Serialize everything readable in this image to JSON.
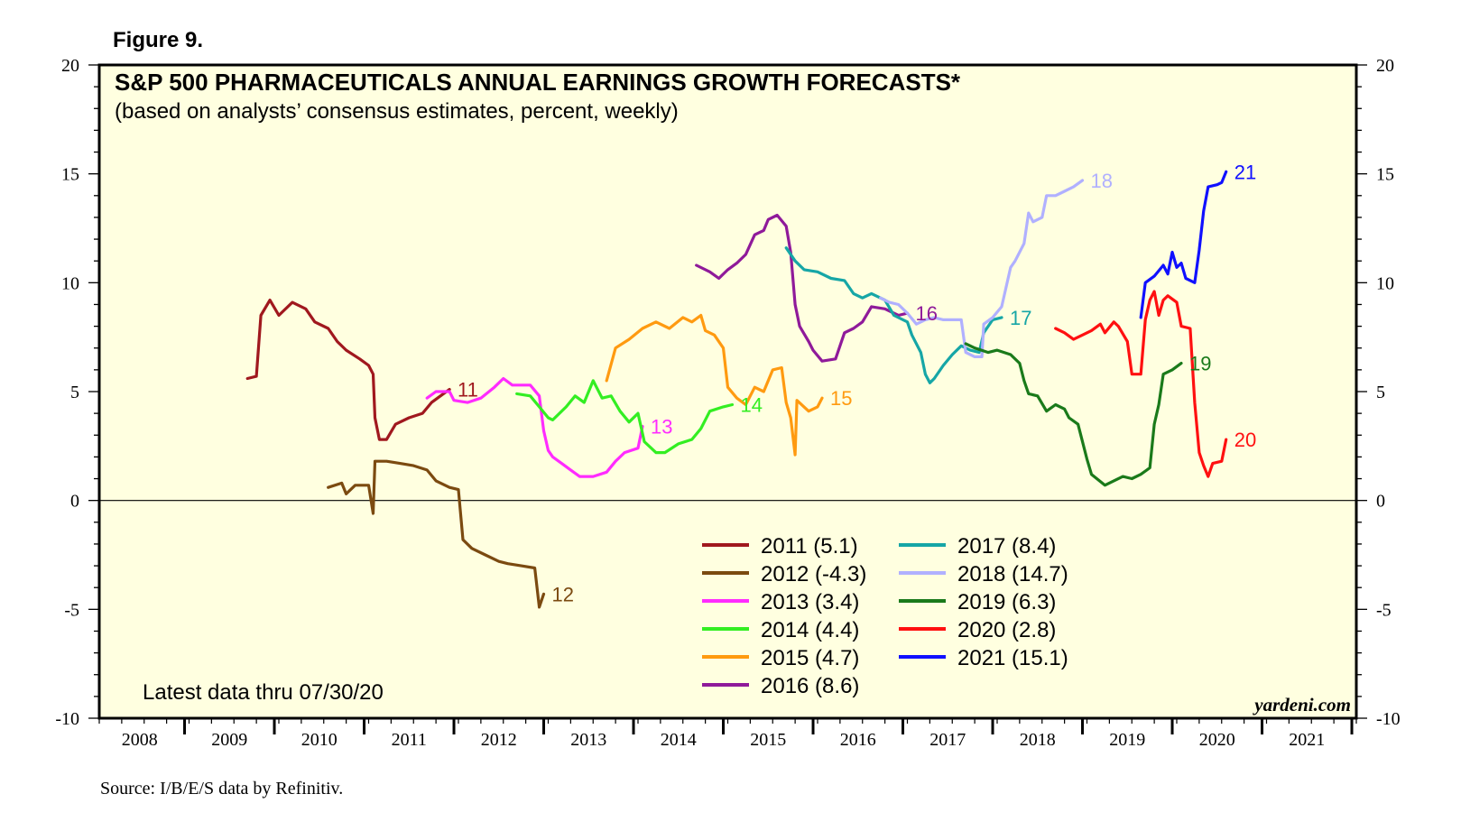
{
  "figure_label": "Figure 9.",
  "source": "Source: I/B/E/S data by Refinitiv.",
  "brand": "yardeni.com",
  "note": "Latest data thru 07/30/20",
  "colors": {
    "plot_bg": "#ffffe0",
    "2011": "#a0181e",
    "2012": "#7b4a10",
    "2013": "#ff2bff",
    "2014": "#33ee22",
    "2015": "#ff9a10",
    "2016": "#8f1a9a",
    "2017": "#16a6a6",
    "2018": "#b0b0ff",
    "2019": "#1a7a1a",
    "2020": "#ff1010",
    "2021": "#1010ff"
  },
  "chart_data": {
    "type": "line",
    "title": "S&P 500 PHARMACEUTICALS ANNUAL EARNINGS GROWTH FORECASTS*",
    "subtitle": "(based on analysts’ consensus estimates, percent, weekly)",
    "xlabel": "",
    "ylabel": "",
    "xlim": [
      2007.55,
      2021.55
    ],
    "ylim": [
      -10,
      20
    ],
    "x_ticks": [
      "2008",
      "2009",
      "2010",
      "2011",
      "2012",
      "2013",
      "2014",
      "2015",
      "2016",
      "2017",
      "2018",
      "2019",
      "2020",
      "2021"
    ],
    "y_ticks": [
      "20",
      "15",
      "10",
      "5",
      "0",
      "-5",
      "-10"
    ],
    "legend_position": "bottom-center",
    "series": [
      {
        "name": "2011",
        "legend": "2011 (5.1)",
        "end_label": "11",
        "points": [
          [
            2009.2,
            5.6
          ],
          [
            2009.3,
            5.7
          ],
          [
            2009.35,
            8.5
          ],
          [
            2009.45,
            9.2
          ],
          [
            2009.55,
            8.5
          ],
          [
            2009.7,
            9.1
          ],
          [
            2009.85,
            8.8
          ],
          [
            2009.95,
            8.2
          ],
          [
            2010.1,
            7.9
          ],
          [
            2010.2,
            7.3
          ],
          [
            2010.3,
            6.9
          ],
          [
            2010.45,
            6.5
          ],
          [
            2010.55,
            6.2
          ],
          [
            2010.6,
            5.8
          ],
          [
            2010.62,
            3.8
          ],
          [
            2010.67,
            2.8
          ],
          [
            2010.75,
            2.8
          ],
          [
            2010.85,
            3.5
          ],
          [
            2011.0,
            3.8
          ],
          [
            2011.15,
            4.0
          ],
          [
            2011.25,
            4.5
          ],
          [
            2011.35,
            4.8
          ],
          [
            2011.45,
            5.1
          ]
        ]
      },
      {
        "name": "2012",
        "legend": "2012 (-4.3)",
        "end_label": "12",
        "points": [
          [
            2010.1,
            0.6
          ],
          [
            2010.25,
            0.8
          ],
          [
            2010.3,
            0.3
          ],
          [
            2010.4,
            0.7
          ],
          [
            2010.55,
            0.7
          ],
          [
            2010.6,
            -0.6
          ],
          [
            2010.62,
            1.8
          ],
          [
            2010.75,
            1.8
          ],
          [
            2010.9,
            1.7
          ],
          [
            2011.05,
            1.6
          ],
          [
            2011.2,
            1.4
          ],
          [
            2011.3,
            0.9
          ],
          [
            2011.45,
            0.6
          ],
          [
            2011.55,
            0.5
          ],
          [
            2011.6,
            -1.8
          ],
          [
            2011.7,
            -2.2
          ],
          [
            2011.85,
            -2.5
          ],
          [
            2012.0,
            -2.8
          ],
          [
            2012.1,
            -2.9
          ],
          [
            2012.25,
            -3.0
          ],
          [
            2012.4,
            -3.1
          ],
          [
            2012.45,
            -4.9
          ],
          [
            2012.5,
            -4.3
          ]
        ]
      },
      {
        "name": "2013",
        "legend": "2013 (3.4)",
        "end_label": "13",
        "points": [
          [
            2011.2,
            4.7
          ],
          [
            2011.3,
            5.0
          ],
          [
            2011.45,
            5.0
          ],
          [
            2011.5,
            4.6
          ],
          [
            2011.65,
            4.5
          ],
          [
            2011.8,
            4.7
          ],
          [
            2011.95,
            5.2
          ],
          [
            2012.05,
            5.6
          ],
          [
            2012.15,
            5.3
          ],
          [
            2012.35,
            5.3
          ],
          [
            2012.45,
            4.8
          ],
          [
            2012.5,
            3.2
          ],
          [
            2012.55,
            2.3
          ],
          [
            2012.6,
            2.0
          ],
          [
            2012.7,
            1.7
          ],
          [
            2012.8,
            1.4
          ],
          [
            2012.9,
            1.1
          ],
          [
            2013.05,
            1.1
          ],
          [
            2013.2,
            1.3
          ],
          [
            2013.3,
            1.8
          ],
          [
            2013.4,
            2.2
          ],
          [
            2013.55,
            2.4
          ],
          [
            2013.6,
            3.4
          ]
        ]
      },
      {
        "name": "2014",
        "legend": "2014 (4.4)",
        "end_label": "14",
        "points": [
          [
            2012.2,
            4.9
          ],
          [
            2012.35,
            4.8
          ],
          [
            2012.45,
            4.3
          ],
          [
            2012.55,
            3.8
          ],
          [
            2012.6,
            3.7
          ],
          [
            2012.75,
            4.3
          ],
          [
            2012.85,
            4.8
          ],
          [
            2012.95,
            4.5
          ],
          [
            2013.05,
            5.5
          ],
          [
            2013.15,
            4.7
          ],
          [
            2013.25,
            4.8
          ],
          [
            2013.35,
            4.1
          ],
          [
            2013.45,
            3.6
          ],
          [
            2013.55,
            4.0
          ],
          [
            2013.62,
            2.7
          ],
          [
            2013.75,
            2.2
          ],
          [
            2013.85,
            2.2
          ],
          [
            2014.0,
            2.6
          ],
          [
            2014.15,
            2.8
          ],
          [
            2014.25,
            3.3
          ],
          [
            2014.35,
            4.1
          ],
          [
            2014.5,
            4.3
          ],
          [
            2014.6,
            4.4
          ]
        ]
      },
      {
        "name": "2015",
        "legend": "2015 (4.7)",
        "end_label": "15",
        "points": [
          [
            2013.2,
            5.5
          ],
          [
            2013.3,
            7.0
          ],
          [
            2013.45,
            7.4
          ],
          [
            2013.6,
            7.9
          ],
          [
            2013.75,
            8.2
          ],
          [
            2013.9,
            7.9
          ],
          [
            2014.05,
            8.4
          ],
          [
            2014.15,
            8.2
          ],
          [
            2014.25,
            8.5
          ],
          [
            2014.3,
            7.8
          ],
          [
            2014.4,
            7.6
          ],
          [
            2014.5,
            7.0
          ],
          [
            2014.55,
            5.2
          ],
          [
            2014.65,
            4.7
          ],
          [
            2014.75,
            4.4
          ],
          [
            2014.85,
            5.2
          ],
          [
            2014.95,
            5.0
          ],
          [
            2015.05,
            6.0
          ],
          [
            2015.15,
            6.1
          ],
          [
            2015.2,
            4.5
          ],
          [
            2015.25,
            3.8
          ],
          [
            2015.3,
            2.1
          ],
          [
            2015.32,
            4.6
          ],
          [
            2015.45,
            4.1
          ],
          [
            2015.55,
            4.3
          ],
          [
            2015.6,
            4.7
          ]
        ]
      },
      {
        "name": "2016",
        "legend": "2016 (8.6)",
        "end_label": "16",
        "points": [
          [
            2014.2,
            10.8
          ],
          [
            2014.35,
            10.5
          ],
          [
            2014.45,
            10.2
          ],
          [
            2014.55,
            10.6
          ],
          [
            2014.65,
            10.9
          ],
          [
            2014.75,
            11.3
          ],
          [
            2014.85,
            12.2
          ],
          [
            2014.95,
            12.4
          ],
          [
            2015.0,
            12.9
          ],
          [
            2015.1,
            13.1
          ],
          [
            2015.2,
            12.6
          ],
          [
            2015.25,
            11.4
          ],
          [
            2015.3,
            9.0
          ],
          [
            2015.35,
            8.0
          ],
          [
            2015.45,
            7.3
          ],
          [
            2015.5,
            6.9
          ],
          [
            2015.6,
            6.4
          ],
          [
            2015.75,
            6.5
          ],
          [
            2015.85,
            7.7
          ],
          [
            2015.95,
            7.9
          ],
          [
            2016.05,
            8.2
          ],
          [
            2016.15,
            8.9
          ],
          [
            2016.3,
            8.8
          ],
          [
            2016.45,
            8.5
          ],
          [
            2016.55,
            8.6
          ]
        ]
      },
      {
        "name": "2017",
        "legend": "2017 (8.4)",
        "end_label": "17",
        "points": [
          [
            2015.2,
            11.6
          ],
          [
            2015.3,
            11.0
          ],
          [
            2015.4,
            10.6
          ],
          [
            2015.55,
            10.5
          ],
          [
            2015.7,
            10.2
          ],
          [
            2015.85,
            10.1
          ],
          [
            2015.95,
            9.5
          ],
          [
            2016.05,
            9.3
          ],
          [
            2016.15,
            9.5
          ],
          [
            2016.3,
            9.2
          ],
          [
            2016.4,
            8.5
          ],
          [
            2016.55,
            8.2
          ],
          [
            2016.6,
            7.6
          ],
          [
            2016.7,
            6.8
          ],
          [
            2016.75,
            5.8
          ],
          [
            2016.8,
            5.4
          ],
          [
            2016.85,
            5.6
          ],
          [
            2016.95,
            6.2
          ],
          [
            2017.05,
            6.7
          ],
          [
            2017.15,
            7.1
          ],
          [
            2017.25,
            6.9
          ],
          [
            2017.35,
            6.8
          ],
          [
            2017.4,
            7.7
          ],
          [
            2017.5,
            8.3
          ],
          [
            2017.6,
            8.4
          ]
        ]
      },
      {
        "name": "2018",
        "legend": "2018 (14.7)",
        "end_label": "18",
        "points": [
          [
            2016.25,
            9.3
          ],
          [
            2016.35,
            9.1
          ],
          [
            2016.45,
            9.0
          ],
          [
            2016.55,
            8.6
          ],
          [
            2016.65,
            8.1
          ],
          [
            2016.75,
            8.3
          ],
          [
            2016.85,
            8.4
          ],
          [
            2016.95,
            8.3
          ],
          [
            2017.05,
            8.3
          ],
          [
            2017.15,
            8.3
          ],
          [
            2017.2,
            6.8
          ],
          [
            2017.3,
            6.6
          ],
          [
            2017.38,
            6.6
          ],
          [
            2017.4,
            8.1
          ],
          [
            2017.5,
            8.4
          ],
          [
            2017.6,
            8.9
          ],
          [
            2017.7,
            10.7
          ],
          [
            2017.75,
            11.0
          ],
          [
            2017.85,
            11.8
          ],
          [
            2017.9,
            13.2
          ],
          [
            2017.95,
            12.8
          ],
          [
            2018.05,
            13.0
          ],
          [
            2018.1,
            14.0
          ],
          [
            2018.2,
            14.0
          ],
          [
            2018.3,
            14.2
          ],
          [
            2018.4,
            14.4
          ],
          [
            2018.5,
            14.7
          ]
        ]
      },
      {
        "name": "2019",
        "legend": "2019 (6.3)",
        "end_label": "19",
        "points": [
          [
            2017.2,
            7.2
          ],
          [
            2017.3,
            7.0
          ],
          [
            2017.45,
            6.8
          ],
          [
            2017.55,
            6.9
          ],
          [
            2017.7,
            6.7
          ],
          [
            2017.8,
            6.3
          ],
          [
            2017.85,
            5.5
          ],
          [
            2017.9,
            4.9
          ],
          [
            2018.0,
            4.8
          ],
          [
            2018.1,
            4.1
          ],
          [
            2018.2,
            4.4
          ],
          [
            2018.3,
            4.2
          ],
          [
            2018.35,
            3.8
          ],
          [
            2018.45,
            3.5
          ],
          [
            2018.55,
            1.9
          ],
          [
            2018.6,
            1.2
          ],
          [
            2018.75,
            0.7
          ],
          [
            2018.85,
            0.9
          ],
          [
            2018.95,
            1.1
          ],
          [
            2019.05,
            1.0
          ],
          [
            2019.15,
            1.2
          ],
          [
            2019.25,
            1.5
          ],
          [
            2019.3,
            3.5
          ],
          [
            2019.35,
            4.4
          ],
          [
            2019.4,
            5.8
          ],
          [
            2019.5,
            6.0
          ],
          [
            2019.6,
            6.3
          ]
        ]
      },
      {
        "name": "2020",
        "legend": "2020 (2.8)",
        "end_label": "20",
        "points": [
          [
            2018.2,
            7.9
          ],
          [
            2018.3,
            7.7
          ],
          [
            2018.4,
            7.4
          ],
          [
            2018.5,
            7.6
          ],
          [
            2018.6,
            7.8
          ],
          [
            2018.7,
            8.1
          ],
          [
            2018.75,
            7.7
          ],
          [
            2018.85,
            8.2
          ],
          [
            2018.9,
            8.0
          ],
          [
            2019.0,
            7.3
          ],
          [
            2019.05,
            5.8
          ],
          [
            2019.15,
            5.8
          ],
          [
            2019.2,
            8.3
          ],
          [
            2019.25,
            9.2
          ],
          [
            2019.3,
            9.6
          ],
          [
            2019.35,
            8.5
          ],
          [
            2019.4,
            9.2
          ],
          [
            2019.45,
            9.4
          ],
          [
            2019.55,
            9.1
          ],
          [
            2019.6,
            8.0
          ],
          [
            2019.7,
            7.9
          ],
          [
            2019.75,
            4.5
          ],
          [
            2019.8,
            2.2
          ],
          [
            2019.85,
            1.6
          ],
          [
            2019.9,
            1.1
          ],
          [
            2019.95,
            1.7
          ],
          [
            2020.05,
            1.8
          ],
          [
            2020.1,
            2.8
          ]
        ]
      },
      {
        "name": "2021",
        "legend": "2021 (15.1)",
        "end_label": "21",
        "points": [
          [
            2019.15,
            8.4
          ],
          [
            2019.2,
            10.0
          ],
          [
            2019.3,
            10.3
          ],
          [
            2019.4,
            10.8
          ],
          [
            2019.45,
            10.4
          ],
          [
            2019.5,
            11.4
          ],
          [
            2019.55,
            10.7
          ],
          [
            2019.6,
            10.9
          ],
          [
            2019.65,
            10.2
          ],
          [
            2019.75,
            10.0
          ],
          [
            2019.8,
            11.5
          ],
          [
            2019.85,
            13.3
          ],
          [
            2019.9,
            14.4
          ],
          [
            2020.0,
            14.5
          ],
          [
            2020.05,
            14.6
          ],
          [
            2020.1,
            15.1
          ]
        ]
      }
    ]
  }
}
